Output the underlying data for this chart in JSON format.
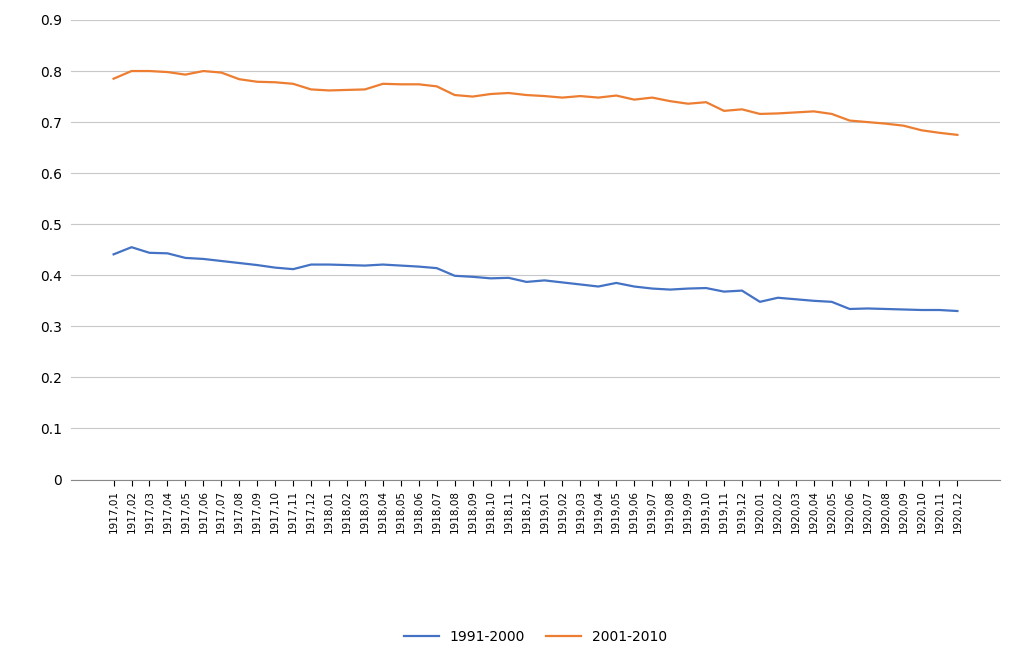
{
  "labels": [
    "1917,01",
    "1917,02",
    "1917,03",
    "1917,04",
    "1917,05",
    "1917,06",
    "1917,07",
    "1917,08",
    "1917,09",
    "1917,10",
    "1917,11",
    "1917,12",
    "1918,01",
    "1918,02",
    "1918,03",
    "1918,04",
    "1918,05",
    "1918,06",
    "1918,07",
    "1918,08",
    "1918,09",
    "1918,10",
    "1918,11",
    "1918,12",
    "1919,01",
    "1919,02",
    "1919,03",
    "1919,04",
    "1919,05",
    "1919,06",
    "1919,07",
    "1919,08",
    "1919,09",
    "1919,10",
    "1919,11",
    "1919,12",
    "1920,01",
    "1920,02",
    "1920,03",
    "1920,04",
    "1920,05",
    "1920,06",
    "1920,07",
    "1920,08",
    "1920,09",
    "1920,10",
    "1920,11",
    "1920,12"
  ],
  "series_1991_2000": [
    0.441,
    0.455,
    0.444,
    0.443,
    0.434,
    0.432,
    0.428,
    0.424,
    0.42,
    0.415,
    0.412,
    0.421,
    0.421,
    0.42,
    0.419,
    0.421,
    0.419,
    0.417,
    0.414,
    0.399,
    0.397,
    0.394,
    0.395,
    0.387,
    0.39,
    0.386,
    0.382,
    0.378,
    0.385,
    0.378,
    0.374,
    0.372,
    0.374,
    0.375,
    0.368,
    0.37,
    0.348,
    0.356,
    0.353,
    0.35,
    0.348,
    0.334,
    0.335,
    0.334,
    0.333,
    0.332,
    0.332,
    0.33
  ],
  "series_2001_2010": [
    0.785,
    0.8,
    0.8,
    0.798,
    0.793,
    0.8,
    0.797,
    0.784,
    0.779,
    0.778,
    0.775,
    0.764,
    0.762,
    0.763,
    0.764,
    0.775,
    0.774,
    0.774,
    0.77,
    0.753,
    0.75,
    0.755,
    0.757,
    0.753,
    0.751,
    0.748,
    0.751,
    0.748,
    0.752,
    0.744,
    0.748,
    0.741,
    0.736,
    0.739,
    0.722,
    0.725,
    0.716,
    0.717,
    0.719,
    0.721,
    0.716,
    0.703,
    0.7,
    0.697,
    0.693,
    0.684,
    0.679,
    0.675
  ],
  "color_1991_2000": "#4472C4",
  "color_2001_2010": "#ED7D31",
  "ylim": [
    0,
    0.9
  ],
  "yticks": [
    0,
    0.1,
    0.2,
    0.3,
    0.4,
    0.5,
    0.6,
    0.7,
    0.8,
    0.9
  ],
  "ytick_labels": [
    "0",
    "0.1",
    "0.2",
    "0.3",
    "0.4",
    "0.5",
    "0.6",
    "0.7",
    "0.8",
    "0.9"
  ],
  "legend_label_1": "1991-2000",
  "legend_label_2": "2001-2010",
  "background_color": "#ffffff",
  "grid_color": "#c8c8c8",
  "line_width": 1.6
}
